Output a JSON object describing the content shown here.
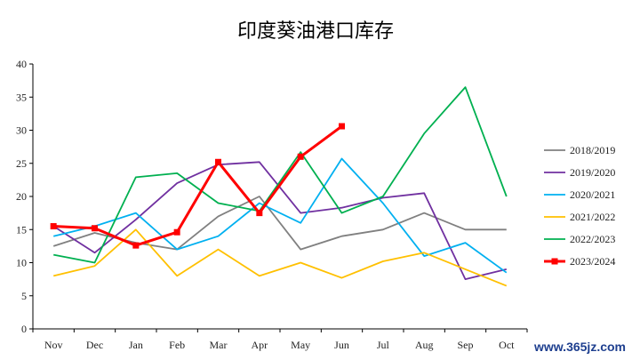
{
  "chart_data": {
    "type": "line",
    "title": "印度葵油港口库存",
    "categories": [
      "Nov",
      "Dec",
      "Jan",
      "Feb",
      "Mar",
      "Apr",
      "May",
      "Jun",
      "Jul",
      "Aug",
      "Sep",
      "Oct"
    ],
    "ylim": [
      0,
      40
    ],
    "yticks": [
      "0",
      "5",
      "10",
      "15",
      "20",
      "25",
      "30",
      "35",
      "40"
    ],
    "grid": false,
    "legend_position": "right",
    "series": [
      {
        "name": "2018/2019",
        "color": "#808080",
        "marker": false,
        "values": [
          12.5,
          14.5,
          13,
          12,
          17,
          20,
          12,
          14,
          15,
          17.5,
          15,
          15
        ]
      },
      {
        "name": "2019/2020",
        "color": "#7030a0",
        "marker": false,
        "values": [
          15.5,
          11.5,
          16.5,
          22,
          24.8,
          25.2,
          17.5,
          18.3,
          19.8,
          20.5,
          7.5,
          9
        ]
      },
      {
        "name": "2020/2021",
        "color": "#00b0f0",
        "marker": false,
        "values": [
          14,
          15.5,
          17.5,
          12,
          14,
          19,
          16,
          25.7,
          19,
          11,
          13,
          8.5
        ]
      },
      {
        "name": "2021/2022",
        "color": "#ffc000",
        "marker": false,
        "values": [
          8,
          9.5,
          15,
          8,
          12,
          8,
          10,
          7.7,
          10.2,
          11.5,
          9,
          6.5
        ]
      },
      {
        "name": "2022/2023",
        "color": "#00b050",
        "marker": false,
        "values": [
          11.2,
          10,
          22.9,
          23.5,
          19,
          17.8,
          26.7,
          17.5,
          20,
          29.5,
          36.5,
          20
        ]
      },
      {
        "name": "2023/2024",
        "color": "#ff0000",
        "marker": true,
        "values": [
          15.5,
          15.2,
          12.6,
          14.6,
          25.2,
          17.5,
          26,
          30.6,
          null,
          null,
          null,
          null
        ]
      }
    ]
  },
  "watermark": "www.365jz.com"
}
